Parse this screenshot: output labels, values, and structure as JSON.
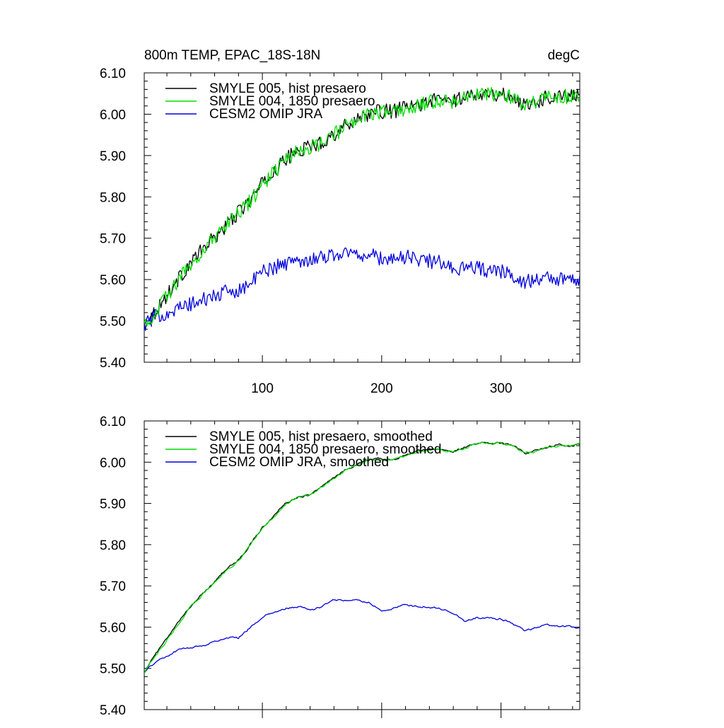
{
  "figure": {
    "title": "800m TEMP, EPAC_18S-18N",
    "units": "degC"
  },
  "colors": {
    "hist": "#000000",
    "pi1850": "#00dd00",
    "omip": "#0000dd"
  },
  "chart_data": [
    {
      "type": "line",
      "panel": "raw",
      "x_range": [
        1,
        366
      ],
      "ylim": [
        5.4,
        6.1
      ],
      "xticks": [
        100,
        200,
        300
      ],
      "xtick_labels": [
        "100",
        "200",
        "300"
      ],
      "yticks": [
        5.4,
        5.5,
        5.6,
        5.7,
        5.8,
        5.9,
        6.0,
        6.1
      ],
      "ytick_labels": [
        "5.40",
        "5.50",
        "5.60",
        "5.70",
        "5.80",
        "5.90",
        "6.00",
        "6.10"
      ],
      "legend_position": "top-left",
      "noise_amplitude": 0.018,
      "series": [
        {
          "key": "hist",
          "name": "SMYLE 005, hist presaero",
          "color": "#000000",
          "x": [
            1,
            10,
            20,
            30,
            40,
            50,
            60,
            70,
            80,
            90,
            100,
            110,
            120,
            130,
            140,
            150,
            160,
            170,
            180,
            190,
            200,
            210,
            220,
            230,
            240,
            250,
            260,
            270,
            280,
            290,
            300,
            310,
            320,
            330,
            340,
            350,
            360,
            366
          ],
          "y": [
            5.49,
            5.52,
            5.56,
            5.6,
            5.64,
            5.67,
            5.7,
            5.73,
            5.76,
            5.79,
            5.83,
            5.86,
            5.89,
            5.91,
            5.92,
            5.93,
            5.95,
            5.97,
            5.99,
            6.0,
            6.005,
            6.005,
            6.015,
            6.02,
            6.03,
            6.035,
            6.03,
            6.04,
            6.05,
            6.05,
            6.045,
            6.04,
            6.02,
            6.03,
            6.04,
            6.045,
            6.04,
            6.045
          ]
        },
        {
          "key": "pi1850",
          "name": "SMYLE 004, 1850 presaero",
          "color": "#00dd00",
          "x": [
            1,
            10,
            20,
            30,
            40,
            50,
            60,
            70,
            80,
            90,
            100,
            110,
            120,
            130,
            140,
            150,
            160,
            170,
            180,
            190,
            200,
            210,
            220,
            230,
            240,
            250,
            260,
            270,
            280,
            290,
            300,
            310,
            320,
            330,
            340,
            350,
            360,
            366
          ],
          "y": [
            5.49,
            5.52,
            5.56,
            5.6,
            5.64,
            5.67,
            5.7,
            5.73,
            5.76,
            5.79,
            5.83,
            5.86,
            5.89,
            5.91,
            5.92,
            5.93,
            5.95,
            5.97,
            5.99,
            6.0,
            6.005,
            6.005,
            6.015,
            6.02,
            6.03,
            6.035,
            6.03,
            6.04,
            6.05,
            6.05,
            6.045,
            6.04,
            6.02,
            6.03,
            6.04,
            6.045,
            6.04,
            6.045
          ]
        },
        {
          "key": "omip",
          "name": "CESM2 OMIP JRA",
          "color": "#0000dd",
          "x": [
            1,
            10,
            20,
            30,
            40,
            50,
            60,
            70,
            80,
            90,
            100,
            110,
            120,
            130,
            140,
            150,
            160,
            170,
            180,
            190,
            200,
            210,
            220,
            230,
            240,
            250,
            260,
            270,
            280,
            290,
            300,
            310,
            320,
            330,
            340,
            350,
            360,
            366
          ],
          "y": [
            5.49,
            5.51,
            5.52,
            5.53,
            5.54,
            5.55,
            5.56,
            5.57,
            5.575,
            5.59,
            5.62,
            5.63,
            5.64,
            5.645,
            5.65,
            5.655,
            5.66,
            5.665,
            5.66,
            5.66,
            5.65,
            5.65,
            5.655,
            5.65,
            5.645,
            5.64,
            5.63,
            5.625,
            5.63,
            5.62,
            5.62,
            5.61,
            5.595,
            5.6,
            5.605,
            5.6,
            5.6,
            5.6
          ]
        }
      ]
    },
    {
      "type": "line",
      "panel": "smoothed",
      "x_range": [
        1,
        366
      ],
      "ylim": [
        5.4,
        6.1
      ],
      "xticks": [
        100,
        200,
        300
      ],
      "xtick_labels": [],
      "yticks": [
        5.4,
        5.5,
        5.6,
        5.7,
        5.8,
        5.9,
        6.0,
        6.1
      ],
      "ytick_labels": [
        "5.40",
        "5.50",
        "5.60",
        "5.70",
        "5.80",
        "5.90",
        "6.00",
        "6.10"
      ],
      "legend_position": "top-left",
      "noise_amplitude": 0.004,
      "series": [
        {
          "key": "hist",
          "name": "SMYLE 005, hist presaero, smoothed",
          "color": "#000000",
          "x": [
            1,
            10,
            20,
            30,
            40,
            50,
            60,
            70,
            80,
            90,
            100,
            110,
            120,
            130,
            140,
            150,
            160,
            170,
            180,
            190,
            200,
            210,
            220,
            230,
            240,
            250,
            260,
            270,
            280,
            290,
            300,
            310,
            320,
            330,
            340,
            350,
            360,
            366
          ],
          "y": [
            5.49,
            5.53,
            5.57,
            5.61,
            5.65,
            5.68,
            5.71,
            5.74,
            5.76,
            5.8,
            5.84,
            5.87,
            5.9,
            5.915,
            5.92,
            5.94,
            5.96,
            5.98,
            5.995,
            6.005,
            6.005,
            6.005,
            6.015,
            6.025,
            6.03,
            6.03,
            6.025,
            6.035,
            6.045,
            6.045,
            6.045,
            6.04,
            6.02,
            6.025,
            6.035,
            6.04,
            6.04,
            6.045
          ]
        },
        {
          "key": "pi1850",
          "name": "SMYLE 004, 1850 presaero, smoothed",
          "color": "#00dd00",
          "x": [
            1,
            10,
            20,
            30,
            40,
            50,
            60,
            70,
            80,
            90,
            100,
            110,
            120,
            130,
            140,
            150,
            160,
            170,
            180,
            190,
            200,
            210,
            220,
            230,
            240,
            250,
            260,
            270,
            280,
            290,
            300,
            310,
            320,
            330,
            340,
            350,
            360,
            366
          ],
          "y": [
            5.49,
            5.53,
            5.57,
            5.61,
            5.65,
            5.68,
            5.71,
            5.74,
            5.76,
            5.8,
            5.84,
            5.87,
            5.9,
            5.915,
            5.92,
            5.94,
            5.96,
            5.98,
            5.995,
            6.005,
            6.005,
            6.005,
            6.015,
            6.025,
            6.03,
            6.03,
            6.025,
            6.035,
            6.045,
            6.045,
            6.045,
            6.04,
            6.02,
            6.025,
            6.035,
            6.04,
            6.04,
            6.045
          ]
        },
        {
          "key": "omip",
          "name": "CESM2 OMIP JRA, smoothed",
          "color": "#0000dd",
          "x": [
            1,
            10,
            20,
            30,
            40,
            50,
            60,
            70,
            80,
            90,
            100,
            110,
            120,
            130,
            140,
            150,
            160,
            170,
            180,
            190,
            200,
            210,
            220,
            230,
            240,
            250,
            260,
            270,
            280,
            290,
            300,
            310,
            320,
            330,
            340,
            350,
            360,
            366
          ],
          "y": [
            5.49,
            5.515,
            5.53,
            5.545,
            5.55,
            5.555,
            5.565,
            5.575,
            5.575,
            5.6,
            5.625,
            5.635,
            5.645,
            5.65,
            5.64,
            5.65,
            5.665,
            5.665,
            5.665,
            5.66,
            5.64,
            5.645,
            5.655,
            5.65,
            5.65,
            5.645,
            5.635,
            5.615,
            5.625,
            5.62,
            5.62,
            5.61,
            5.59,
            5.6,
            5.605,
            5.6,
            5.6,
            5.6
          ]
        }
      ]
    }
  ]
}
